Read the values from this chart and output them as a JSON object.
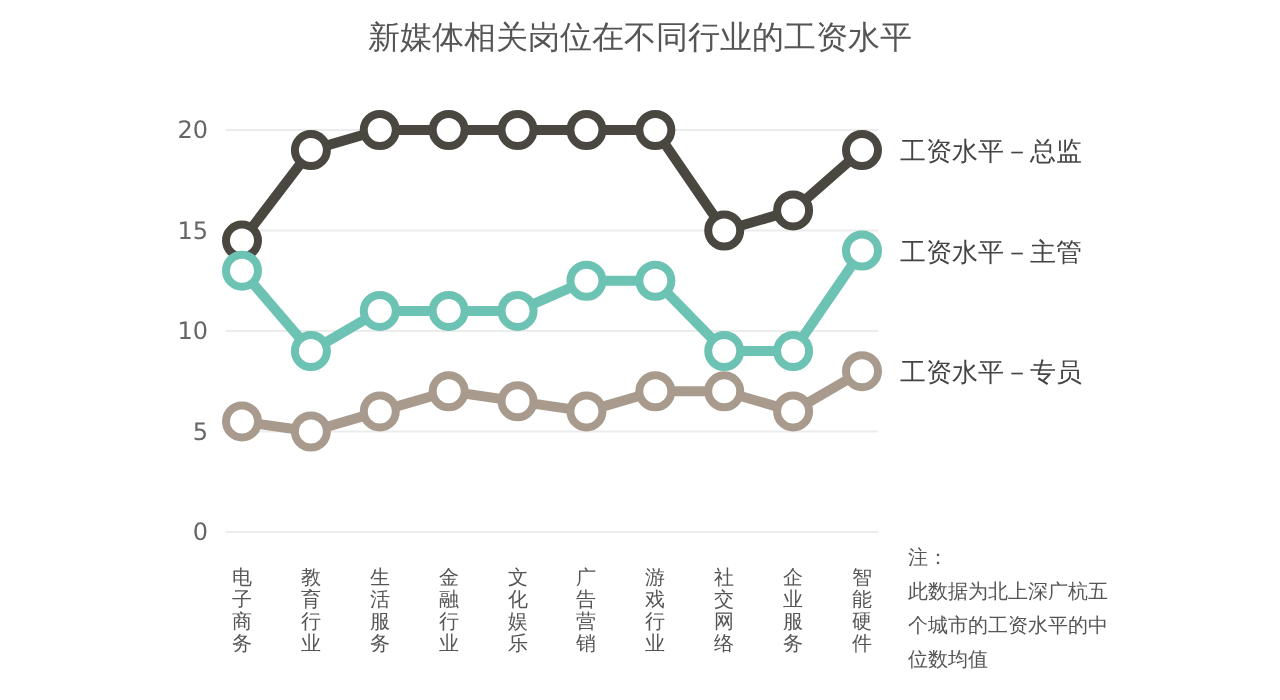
{
  "chart_data": {
    "type": "line",
    "title": "新媒体相关岗位在不同行业的工资水平",
    "categories": [
      "电子商务",
      "教育行业",
      "生活服务",
      "金融行业",
      "文化娱乐",
      "广告营销",
      "游戏行业",
      "社交网络",
      "企业服务",
      "智能硬件"
    ],
    "series": [
      {
        "name": "工资水平－总监",
        "color": "#4a4640",
        "values": [
          14.5,
          19,
          20,
          20,
          20,
          20,
          20,
          15,
          16,
          19
        ]
      },
      {
        "name": "工资水平－主管",
        "color": "#6cc3b3",
        "values": [
          13,
          9,
          11,
          11,
          11,
          12.5,
          12.5,
          9,
          9,
          14
        ]
      },
      {
        "name": "工资水平－专员",
        "color": "#a89a8c",
        "values": [
          5.5,
          5,
          6,
          7,
          6.5,
          6,
          7,
          7,
          6,
          8
        ]
      }
    ],
    "ylim": [
      0,
      20
    ],
    "yticks": [
      0,
      5,
      10,
      15,
      20
    ],
    "grid": "y",
    "marker": "circle",
    "line_style": "solid",
    "annotations": [
      "注：",
      "此数据为北上深广杭五个城市的工资水平的中位数均值"
    ]
  }
}
